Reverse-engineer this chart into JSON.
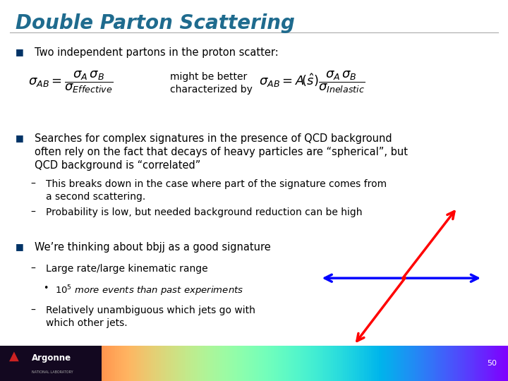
{
  "title": "Double Parton Scattering",
  "title_color": "#1F6B8E",
  "title_fontsize": 20,
  "bg_color": "#FFFFFF",
  "bullet_color": "#003366",
  "text_color": "#000000",
  "footer_page": "50",
  "bullet1": "Two independent partons in the proton scatter:",
  "bullet2_line1": "Searches for complex signatures in the presence of QCD background",
  "bullet2_line2": "often rely on the fact that decays of heavy particles are “spherical”, but",
  "bullet2_line3": "QCD background is “correlated”",
  "sub1_line1": "This breaks down in the case where part of the signature comes from",
  "sub1_line2": "a second scattering.",
  "sub2": "Probability is low, but needed background reduction can be high",
  "bullet3": "We’re thinking about bbjj as a good signature",
  "sub3": "Large rate/large kinematic range",
  "sub3b_suffix": "more events than past experiments",
  "sub4_line1": "Relatively unambiguous which jets go with",
  "sub4_line2": "which other jets.",
  "might_be": "might be better\ncharacterized by",
  "footer_label": "Argonne",
  "footer_sublabel": "NATIONAL LABORATORY"
}
